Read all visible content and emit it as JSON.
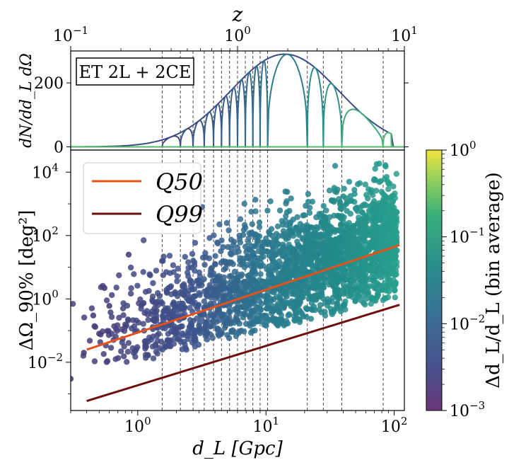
{
  "chart_data": [
    {
      "type": "line",
      "panel": "top",
      "title": "",
      "annotation": "ET 2L + 2CE",
      "ylabel": "dN/dd_L dΩ",
      "ylim": [
        -10,
        300
      ],
      "yticks": [
        0,
        200
      ],
      "ytick_labels": [
        "0",
        "200"
      ],
      "x_top_label": "z",
      "x_top_ticks": [
        0.1,
        1,
        10
      ],
      "x_top_tick_labels": [
        "10^-1",
        "10^0",
        "10^1"
      ],
      "envelope_peak": 290,
      "series_desc": "distance-binned distributions under a smooth envelope",
      "bin_edges_gpc": [
        1.55,
        2.15,
        2.7,
        3.3,
        3.9,
        4.5,
        5.2,
        6.0,
        6.9,
        7.9,
        9.0,
        10.3,
        21,
        28,
        39,
        82
      ]
    },
    {
      "type": "scatter",
      "panel": "bottom",
      "xlabel": "d_L [Gpc]",
      "ylabel": "ΔΩ_90% [deg²]",
      "xlim": [
        0.3,
        120
      ],
      "ylim": [
        0.0003,
        50000
      ],
      "xticks": [
        1,
        10,
        100
      ],
      "xtick_labels": [
        "10^0",
        "10^1",
        "10^2"
      ],
      "yticks": [
        0.01,
        1,
        100,
        10000
      ],
      "ytick_labels": [
        "10^-2",
        "10^0",
        "10^2",
        "10^4"
      ],
      "colorbar": {
        "label": "Δd_L/d_L (bin average)",
        "range": [
          0.001,
          1
        ],
        "ticks": [
          0.001,
          0.01,
          0.1,
          1
        ],
        "tick_labels": [
          "10^-3",
          "10^-2",
          "10^-1",
          "10^0"
        ]
      },
      "series": [
        {
          "name": "Q50",
          "color": "#e8501a",
          "x": [
            0.4,
            110
          ],
          "y": [
            0.025,
            50
          ]
        },
        {
          "name": "Q99",
          "color": "#6e0e0e",
          "x": [
            0.4,
            110
          ],
          "y": [
            0.0006,
            0.65
          ]
        }
      ],
      "legend": {
        "position": "upper-left",
        "entries": [
          "Q50",
          "Q99"
        ]
      }
    }
  ]
}
